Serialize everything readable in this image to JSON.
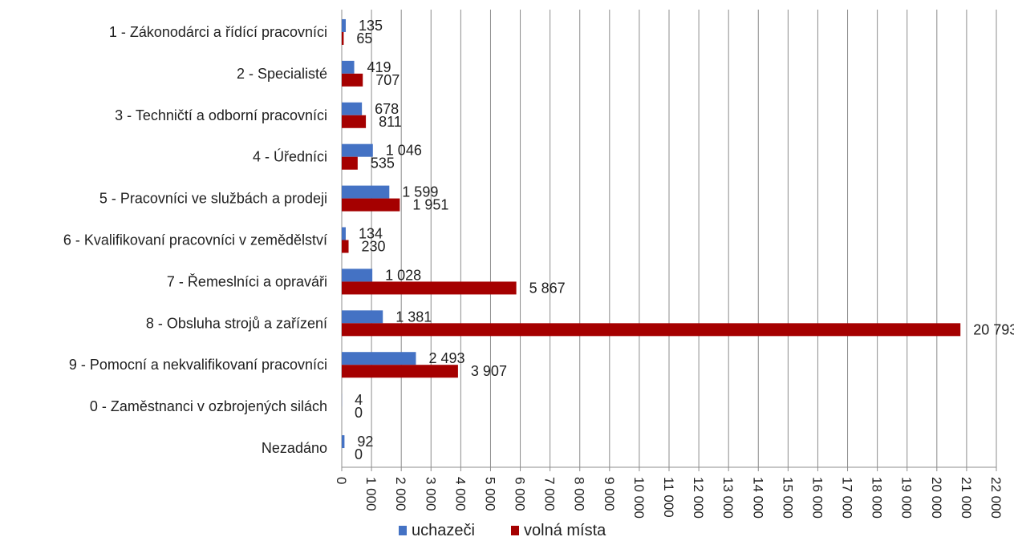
{
  "chart_data": {
    "type": "bar",
    "orientation": "horizontal",
    "categories": [
      "1 - Zákonodárci a řídící pracovníci",
      "2 - Specialisté",
      "3 - Techničtí a odborní pracovníci",
      "4 - Úředníci",
      "5 - Pracovníci ve službách a prodeji",
      "6 - Kvalifikovaní pracovníci v zemědělství",
      "7 - Řemeslníci a opraváři",
      "8 - Obsluha strojů a zařízení",
      "9 - Pomocní a nekvalifikovaní pracovníci",
      "0 - Zaměstnanci v ozbrojených silách",
      "Nezadáno"
    ],
    "series": [
      {
        "name": "uchazeči",
        "color": "#4472c4",
        "values": [
          135,
          419,
          678,
          1046,
          1599,
          134,
          1028,
          1381,
          2493,
          4,
          92
        ],
        "labels": [
          "135",
          "419",
          "678",
          "1 046",
          "1 599",
          "134",
          "1 028",
          "1 381",
          "2 493",
          "4",
          "92"
        ]
      },
      {
        "name": "volná místa",
        "color": "#a50000",
        "values": [
          65,
          707,
          811,
          535,
          1951,
          230,
          5867,
          20793,
          3907,
          0,
          0
        ],
        "labels": [
          "65",
          "707",
          "811",
          "535",
          "1 951",
          "230",
          "5 867",
          "20 793",
          "3 907",
          "0",
          "0"
        ]
      }
    ],
    "xlim": [
      0,
      22000
    ],
    "xticks": [
      0,
      1000,
      2000,
      3000,
      4000,
      5000,
      6000,
      7000,
      8000,
      9000,
      10000,
      11000,
      12000,
      13000,
      14000,
      15000,
      16000,
      17000,
      18000,
      19000,
      20000,
      21000,
      22000
    ],
    "xtick_labels": [
      "0",
      "1 000",
      "2 000",
      "3 000",
      "4 000",
      "5 000",
      "6 000",
      "7 000",
      "8 000",
      "9 000",
      "10 000",
      "11 000",
      "12 000",
      "13 000",
      "14 000",
      "15 000",
      "16 000",
      "17 000",
      "18 000",
      "19 000",
      "20 000",
      "21 000",
      "22 000"
    ],
    "grid": "vertical",
    "legend": "bottom",
    "title": "",
    "xlabel": "",
    "ylabel": ""
  }
}
